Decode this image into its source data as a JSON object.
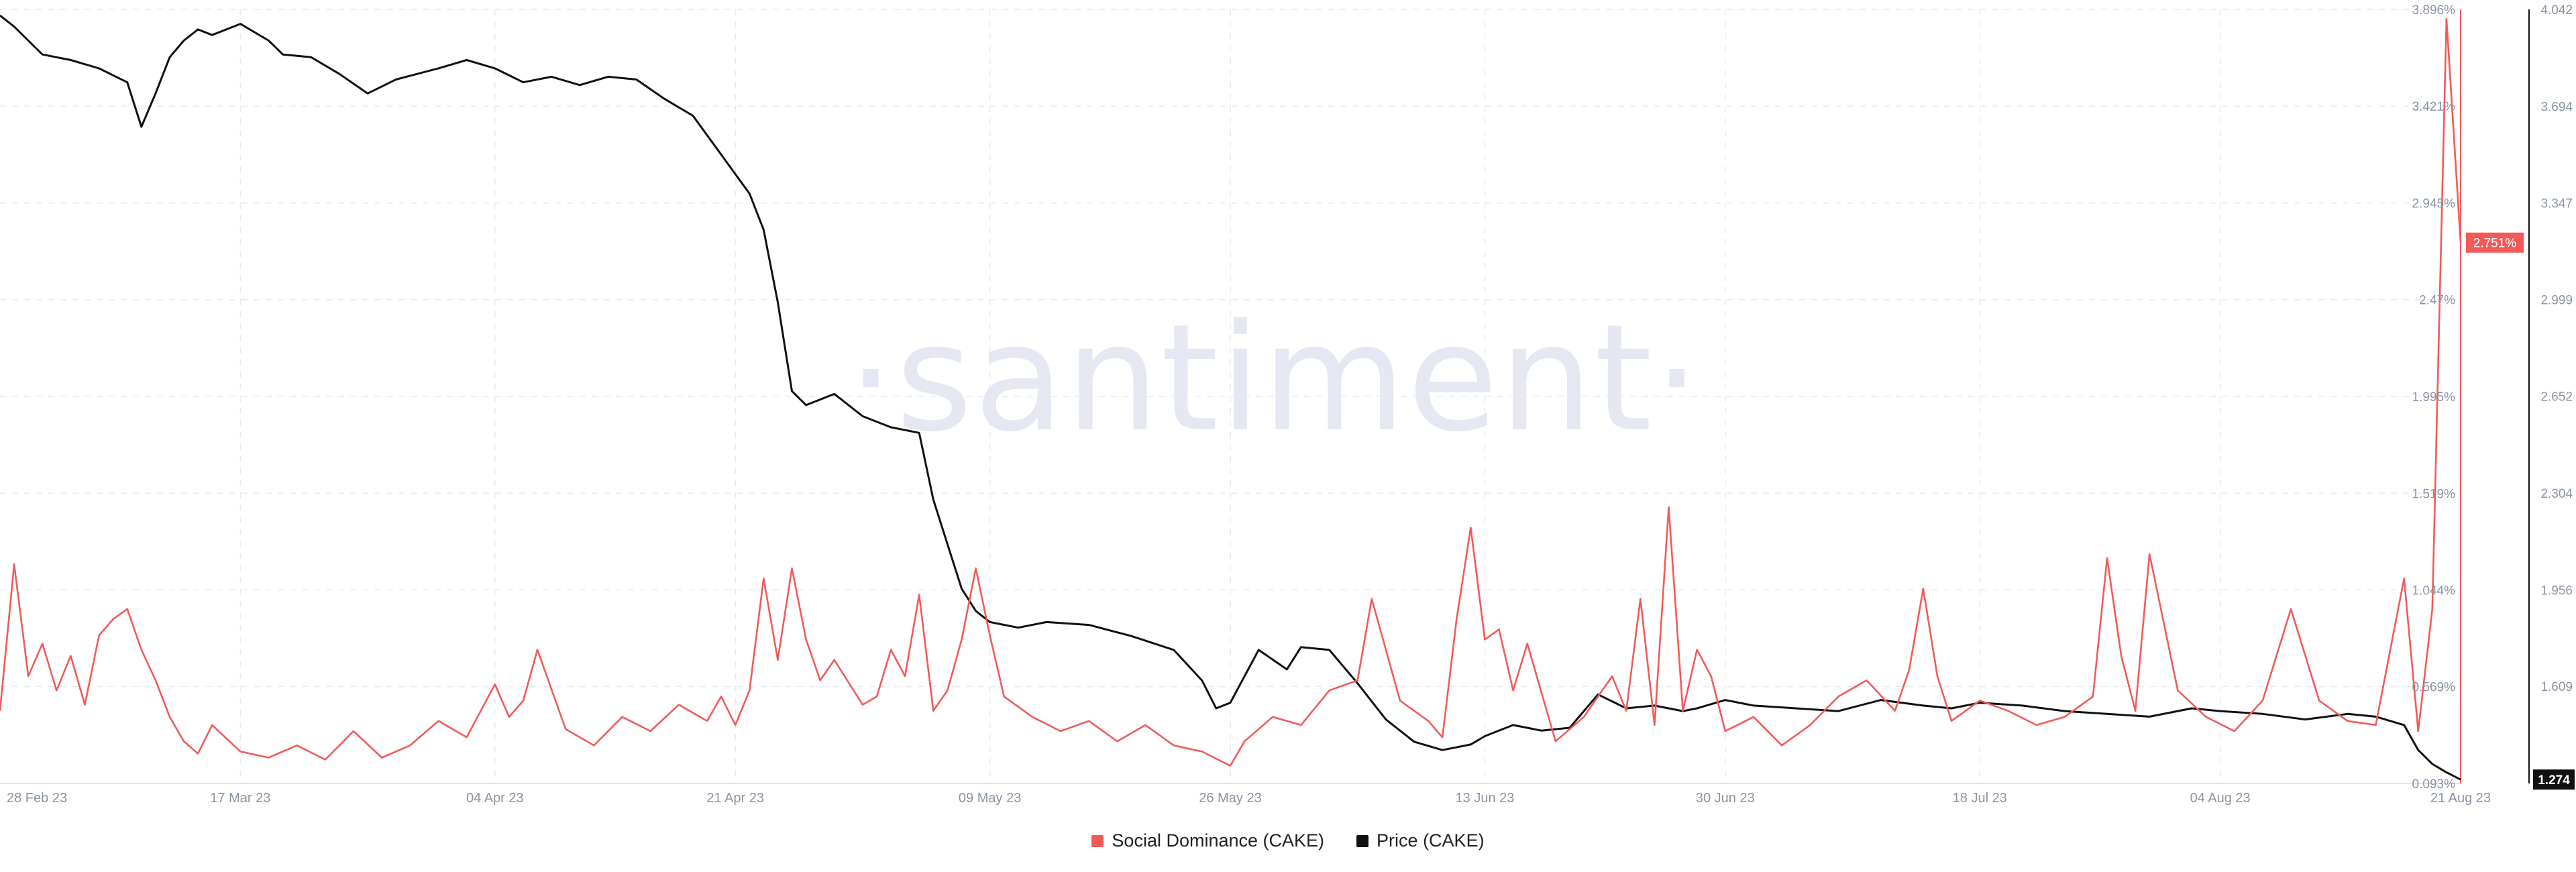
{
  "chart_data": {
    "type": "line",
    "watermark": "·santiment·",
    "x_ticks": [
      "28 Feb 23",
      "17 Mar 23",
      "04 Apr 23",
      "21 Apr 23",
      "09 May 23",
      "26 May 23",
      "13 Jun 23",
      "30 Jun 23",
      "18 Jul 23",
      "04 Aug 23",
      "21 Aug 23"
    ],
    "x_range": [
      "2023-02-28",
      "2023-08-21"
    ],
    "y_left": {
      "series": "Social Dominance (CAKE)",
      "ticks": [
        "3.896%",
        "3.421%",
        "2.945%",
        "2.47%",
        "1.995%",
        "1.519%",
        "1.044%",
        "0.569%",
        "0.093%"
      ],
      "range": [
        0.093,
        3.896
      ],
      "current_label": "2.751%"
    },
    "y_right": {
      "series": "Price (CAKE)",
      "ticks": [
        "4.042",
        "3.694",
        "3.347",
        "2.999",
        "2.652",
        "2.304",
        "1.956",
        "1.609"
      ],
      "range": [
        1.26,
        4.042
      ],
      "current_label": "1.274"
    },
    "grid": true,
    "legend_position": "bottom-center",
    "colors": {
      "social": "#f25a5a",
      "price": "#111111"
    },
    "series": [
      {
        "name": "Price (CAKE)",
        "axis": "right",
        "x": [
          "2023-02-28",
          "2023-03-01",
          "2023-03-03",
          "2023-03-05",
          "2023-03-07",
          "2023-03-09",
          "2023-03-10",
          "2023-03-11",
          "2023-03-12",
          "2023-03-13",
          "2023-03-14",
          "2023-03-15",
          "2023-03-17",
          "2023-03-19",
          "2023-03-20",
          "2023-03-22",
          "2023-03-24",
          "2023-03-26",
          "2023-03-28",
          "2023-03-31",
          "2023-04-02",
          "2023-04-04",
          "2023-04-06",
          "2023-04-08",
          "2023-04-10",
          "2023-04-12",
          "2023-04-14",
          "2023-04-16",
          "2023-04-18",
          "2023-04-20",
          "2023-04-21",
          "2023-04-22",
          "2023-04-23",
          "2023-04-24",
          "2023-04-25",
          "2023-04-26",
          "2023-04-28",
          "2023-04-30",
          "2023-05-02",
          "2023-05-04",
          "2023-05-05",
          "2023-05-06",
          "2023-05-07",
          "2023-05-08",
          "2023-05-09",
          "2023-05-11",
          "2023-05-13",
          "2023-05-16",
          "2023-05-19",
          "2023-05-22",
          "2023-05-24",
          "2023-05-25",
          "2023-05-26",
          "2023-05-28",
          "2023-05-30",
          "2023-05-31",
          "2023-06-02",
          "2023-06-04",
          "2023-06-06",
          "2023-06-08",
          "2023-06-10",
          "2023-06-12",
          "2023-06-13",
          "2023-06-15",
          "2023-06-17",
          "2023-06-19",
          "2023-06-21",
          "2023-06-23",
          "2023-06-25",
          "2023-06-27",
          "2023-06-28",
          "2023-06-30",
          "2023-07-02",
          "2023-07-05",
          "2023-07-08",
          "2023-07-11",
          "2023-07-14",
          "2023-07-16",
          "2023-07-18",
          "2023-07-21",
          "2023-07-24",
          "2023-07-27",
          "2023-07-30",
          "2023-08-02",
          "2023-08-04",
          "2023-08-07",
          "2023-08-10",
          "2023-08-13",
          "2023-08-15",
          "2023-08-17",
          "2023-08-18",
          "2023-08-19",
          "2023-08-20",
          "2023-08-21"
        ],
        "values": [
          4.02,
          3.98,
          3.88,
          3.86,
          3.83,
          3.78,
          3.62,
          3.74,
          3.87,
          3.93,
          3.97,
          3.95,
          3.99,
          3.93,
          3.88,
          3.87,
          3.81,
          3.74,
          3.79,
          3.83,
          3.86,
          3.83,
          3.78,
          3.8,
          3.77,
          3.8,
          3.79,
          3.72,
          3.66,
          3.52,
          3.45,
          3.38,
          3.25,
          2.99,
          2.67,
          2.62,
          2.66,
          2.58,
          2.54,
          2.52,
          2.28,
          2.12,
          1.96,
          1.88,
          1.84,
          1.82,
          1.84,
          1.83,
          1.79,
          1.74,
          1.63,
          1.53,
          1.55,
          1.74,
          1.67,
          1.75,
          1.74,
          1.62,
          1.49,
          1.41,
          1.38,
          1.4,
          1.43,
          1.47,
          1.45,
          1.46,
          1.58,
          1.53,
          1.54,
          1.52,
          1.53,
          1.56,
          1.54,
          1.53,
          1.52,
          1.56,
          1.54,
          1.53,
          1.55,
          1.54,
          1.52,
          1.51,
          1.5,
          1.53,
          1.52,
          1.51,
          1.49,
          1.51,
          1.5,
          1.47,
          1.38,
          1.33,
          1.3,
          1.274
        ]
      },
      {
        "name": "Social Dominance (CAKE)",
        "axis": "left",
        "x": [
          "2023-02-28",
          "2023-03-01",
          "2023-03-02",
          "2023-03-03",
          "2023-03-04",
          "2023-03-05",
          "2023-03-06",
          "2023-03-07",
          "2023-03-08",
          "2023-03-09",
          "2023-03-10",
          "2023-03-11",
          "2023-03-12",
          "2023-03-13",
          "2023-03-14",
          "2023-03-15",
          "2023-03-17",
          "2023-03-19",
          "2023-03-21",
          "2023-03-23",
          "2023-03-25",
          "2023-03-27",
          "2023-03-29",
          "2023-03-31",
          "2023-04-02",
          "2023-04-04",
          "2023-04-05",
          "2023-04-06",
          "2023-04-07",
          "2023-04-09",
          "2023-04-11",
          "2023-04-13",
          "2023-04-15",
          "2023-04-17",
          "2023-04-19",
          "2023-04-20",
          "2023-04-21",
          "2023-04-22",
          "2023-04-23",
          "2023-04-24",
          "2023-04-25",
          "2023-04-26",
          "2023-04-27",
          "2023-04-28",
          "2023-04-30",
          "2023-05-01",
          "2023-05-02",
          "2023-05-03",
          "2023-05-04",
          "2023-05-05",
          "2023-05-06",
          "2023-05-07",
          "2023-05-08",
          "2023-05-09",
          "2023-05-10",
          "2023-05-12",
          "2023-05-14",
          "2023-05-16",
          "2023-05-18",
          "2023-05-20",
          "2023-05-22",
          "2023-05-24",
          "2023-05-26",
          "2023-05-27",
          "2023-05-29",
          "2023-05-31",
          "2023-06-02",
          "2023-06-04",
          "2023-06-05",
          "2023-06-07",
          "2023-06-09",
          "2023-06-10",
          "2023-06-11",
          "2023-06-12",
          "2023-06-13",
          "2023-06-14",
          "2023-06-15",
          "2023-06-16",
          "2023-06-18",
          "2023-06-20",
          "2023-06-22",
          "2023-06-23",
          "2023-06-24",
          "2023-06-25",
          "2023-06-26",
          "2023-06-27",
          "2023-06-28",
          "2023-06-29",
          "2023-06-30",
          "2023-07-02",
          "2023-07-04",
          "2023-07-06",
          "2023-07-08",
          "2023-07-10",
          "2023-07-12",
          "2023-07-13",
          "2023-07-14",
          "2023-07-15",
          "2023-07-16",
          "2023-07-18",
          "2023-07-20",
          "2023-07-22",
          "2023-07-24",
          "2023-07-26",
          "2023-07-27",
          "2023-07-28",
          "2023-07-29",
          "2023-07-30",
          "2023-08-01",
          "2023-08-03",
          "2023-08-05",
          "2023-08-07",
          "2023-08-09",
          "2023-08-11",
          "2023-08-13",
          "2023-08-15",
          "2023-08-17",
          "2023-08-18",
          "2023-08-19",
          "2023-08-20",
          "2023-08-21"
        ],
        "values": [
          0.45,
          1.17,
          0.62,
          0.78,
          0.55,
          0.72,
          0.48,
          0.82,
          0.9,
          0.95,
          0.75,
          0.6,
          0.42,
          0.3,
          0.24,
          0.38,
          0.25,
          0.22,
          0.28,
          0.21,
          0.35,
          0.22,
          0.28,
          0.4,
          0.32,
          0.58,
          0.42,
          0.5,
          0.75,
          0.36,
          0.28,
          0.42,
          0.35,
          0.48,
          0.4,
          0.52,
          0.38,
          0.55,
          1.1,
          0.7,
          1.15,
          0.8,
          0.6,
          0.7,
          0.48,
          0.52,
          0.75,
          0.62,
          1.02,
          0.45,
          0.55,
          0.8,
          1.15,
          0.82,
          0.52,
          0.42,
          0.35,
          0.4,
          0.3,
          0.38,
          0.28,
          0.25,
          0.18,
          0.3,
          0.42,
          0.38,
          0.55,
          0.6,
          1.0,
          0.5,
          0.4,
          0.32,
          0.9,
          1.35,
          0.8,
          0.85,
          0.55,
          0.78,
          0.3,
          0.42,
          0.62,
          0.45,
          1.0,
          0.38,
          1.45,
          0.45,
          0.75,
          0.62,
          0.35,
          0.42,
          0.28,
          0.38,
          0.52,
          0.6,
          0.45,
          0.65,
          1.05,
          0.62,
          0.4,
          0.5,
          0.45,
          0.38,
          0.42,
          0.52,
          1.2,
          0.72,
          0.45,
          1.22,
          0.55,
          0.42,
          0.35,
          0.5,
          0.95,
          0.5,
          0.4,
          0.38,
          1.1,
          0.35,
          0.95,
          3.85,
          2.75
        ]
      }
    ]
  }
}
